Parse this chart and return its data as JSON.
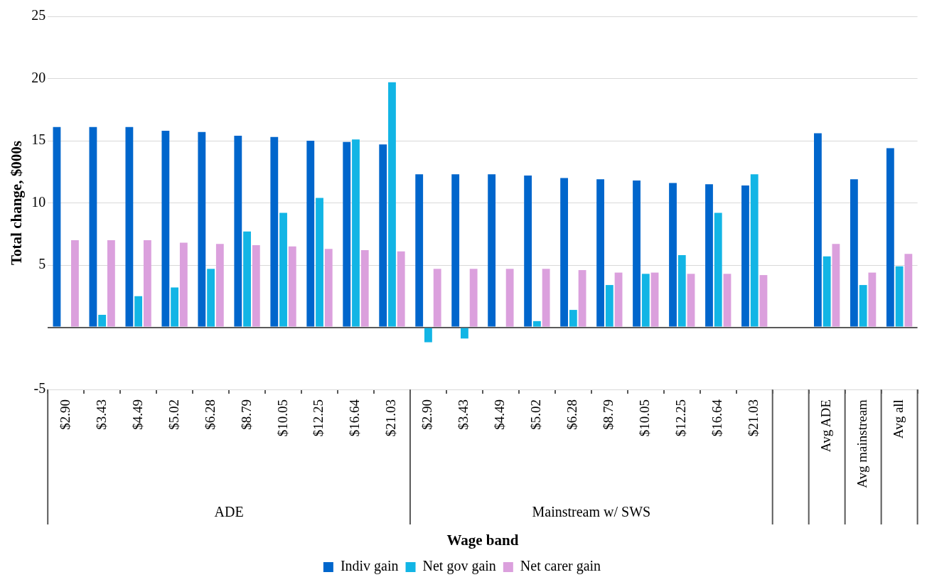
{
  "chart_data": {
    "type": "bar",
    "xlabel": "Wage band",
    "ylabel": "Total change, $000s",
    "categories": [
      "$2.90",
      "$3.43",
      "$4.49",
      "$5.02",
      "$6.28",
      "$8.79",
      "$10.05",
      "$12.25",
      "$16.64",
      "$21.03",
      "$2.90",
      "$3.43",
      "$4.49",
      "$5.02",
      "$6.28",
      "$8.79",
      "$10.05",
      "$12.25",
      "$16.64",
      "$21.03",
      null,
      "Avg ADE",
      "Avg mainstream",
      "Avg all"
    ],
    "series": [
      {
        "name": "Indiv gain",
        "color": "#0066cc",
        "values": [
          16.1,
          16.1,
          16.1,
          15.8,
          15.7,
          15.4,
          15.3,
          15.0,
          14.9,
          14.7,
          12.3,
          12.3,
          12.3,
          12.2,
          12.0,
          11.9,
          11.8,
          11.6,
          11.5,
          11.4,
          null,
          15.6,
          11.9,
          14.4
        ]
      },
      {
        "name": "Net gov gain",
        "color": "#12b5e5",
        "values": [
          0,
          1.0,
          2.5,
          3.2,
          4.7,
          7.7,
          9.2,
          10.4,
          15.1,
          19.7,
          -1.2,
          -0.9,
          0,
          0.5,
          1.4,
          3.4,
          4.3,
          5.8,
          9.2,
          12.3,
          null,
          5.7,
          3.4,
          4.9
        ]
      },
      {
        "name": "Net carer gain",
        "color": "#dba0dd",
        "values": [
          7.0,
          7.0,
          7.0,
          6.8,
          6.7,
          6.6,
          6.5,
          6.3,
          6.2,
          6.1,
          4.7,
          4.7,
          4.7,
          4.7,
          4.6,
          4.4,
          4.4,
          4.3,
          4.3,
          4.2,
          null,
          6.7,
          4.4,
          5.9
        ]
      }
    ],
    "annotations": [
      "ADE",
      "Mainstream w/ SWS"
    ],
    "ylim": [
      -5,
      25
    ],
    "yticks": [
      -5,
      {
        "value": 0,
        "label": null
      },
      5,
      10,
      15,
      20,
      25
    ],
    "grid": "y",
    "legend": "bottom"
  }
}
